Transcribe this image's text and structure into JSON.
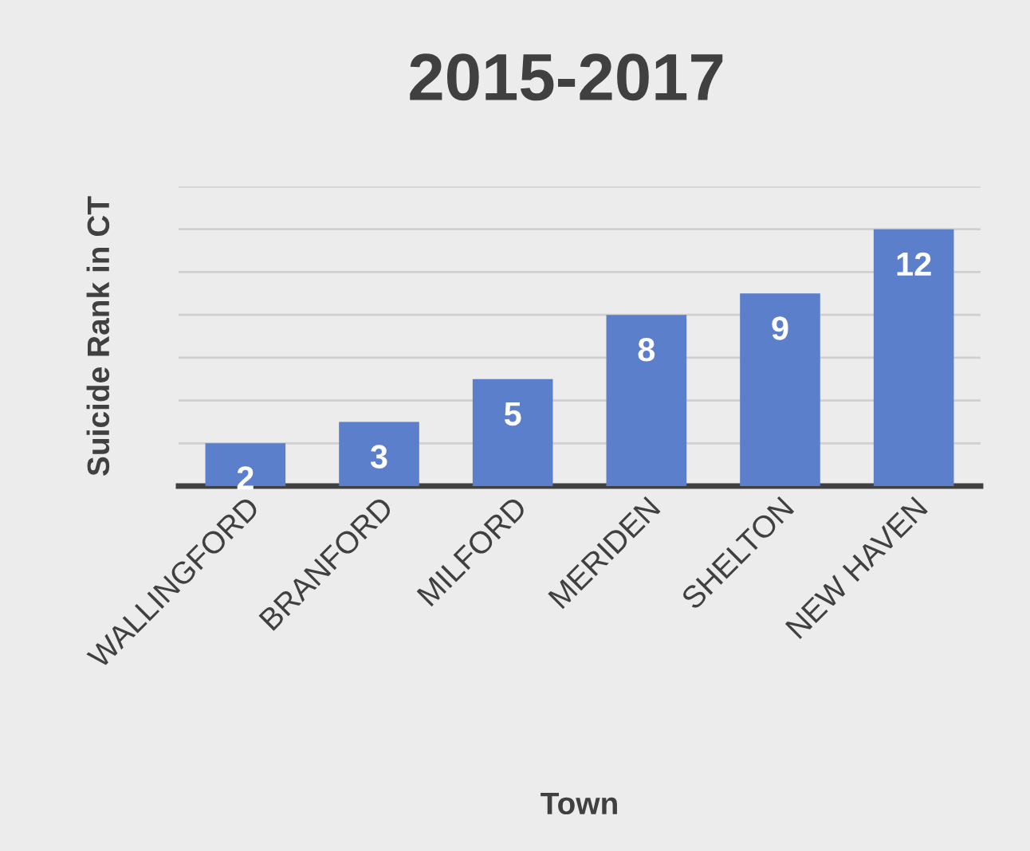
{
  "chart_data": {
    "type": "bar",
    "title": "2015-2017",
    "xlabel": "Town",
    "ylabel": "Suicide Rank in CT",
    "categories": [
      "WALLINGFORD",
      "BRANFORD",
      "MILFORD",
      "MERIDEN",
      "SHELTON",
      "NEW HAVEN"
    ],
    "values": [
      2,
      3,
      5,
      8,
      9,
      12
    ],
    "color": "#5b7fcb",
    "data_labels": true,
    "ylim": [
      0,
      14
    ],
    "yticks": [
      {
        "value": 0,
        "label": null
      },
      {
        "value": 2,
        "label": null
      },
      {
        "value": 4,
        "label": null
      },
      {
        "value": 6,
        "label": null
      },
      {
        "value": 8,
        "label": null
      },
      {
        "value": 10,
        "label": null
      },
      {
        "value": 12,
        "label": null
      },
      {
        "value": 14,
        "label": null
      }
    ],
    "grid": "y",
    "legend": false
  }
}
